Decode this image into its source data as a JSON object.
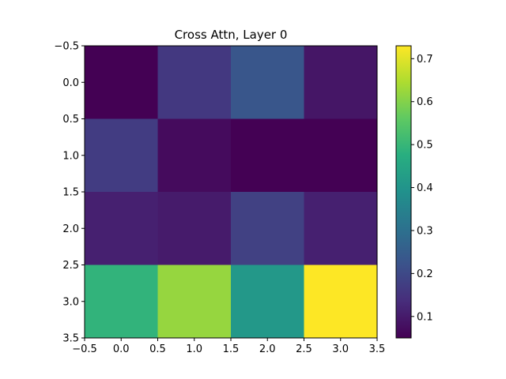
{
  "chart_data": {
    "type": "heatmap",
    "title": "Cross Attn, Layer 0",
    "xlabel": "",
    "ylabel": "",
    "xlim": [
      -0.5,
      3.5
    ],
    "ylim": [
      3.5,
      -0.5
    ],
    "x_ticks": [
      "−0.5",
      "0.0",
      "0.5",
      "1.0",
      "1.5",
      "2.0",
      "2.5",
      "3.0",
      "3.5"
    ],
    "y_ticks": [
      "−0.5",
      "0.0",
      "0.5",
      "1.0",
      "1.5",
      "2.0",
      "2.5",
      "3.0",
      "3.5"
    ],
    "matrix": [
      [
        0.05,
        0.16,
        0.23,
        0.09
      ],
      [
        0.17,
        0.07,
        0.05,
        0.05
      ],
      [
        0.11,
        0.1,
        0.18,
        0.11
      ],
      [
        0.49,
        0.62,
        0.41,
        0.73
      ]
    ],
    "colormap": "viridis",
    "colorbar": {
      "min": 0.05,
      "max": 0.73,
      "ticks": [
        0.1,
        0.2,
        0.3,
        0.4,
        0.5,
        0.6,
        0.7
      ],
      "tick_labels": [
        "0.1",
        "0.2",
        "0.3",
        "0.4",
        "0.5",
        "0.6",
        "0.7"
      ]
    },
    "grid": false
  }
}
